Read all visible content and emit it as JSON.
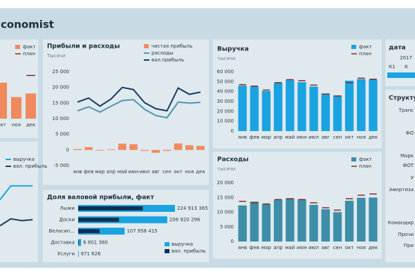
{
  "header": {
    "title": "conomist"
  },
  "chart_data": [
    {
      "type": "combo",
      "title": "Прибыли и расходы",
      "subtitle": "Тысячи",
      "categories": [
        "янв",
        "фев",
        "мар",
        "апр",
        "май",
        "июн",
        "июл",
        "авг",
        "сен",
        "окт",
        "ноя",
        "дек"
      ],
      "series": [
        {
          "name": "чистая прибыль",
          "type": "bar",
          "color": "#f08a5d",
          "values": [
            300,
            900,
            -200,
            200,
            2000,
            1800,
            -300,
            -900,
            -300,
            2100,
            1500,
            1300
          ]
        },
        {
          "name": "расходы",
          "type": "line",
          "color": "#4a97b0",
          "values": [
            12500,
            13800,
            12100,
            14000,
            15800,
            16100,
            13000,
            11000,
            10300,
            15300,
            15000,
            15200
          ]
        },
        {
          "name": "вал.прибыль",
          "type": "line",
          "color": "#173a5e",
          "values": [
            15300,
            16600,
            14000,
            16300,
            20000,
            19300,
            15100,
            13200,
            12500,
            19800,
            17800,
            18500
          ]
        }
      ],
      "ylim": [
        -5000,
        25000
      ],
      "yticks": [
        {
          "value": 25000,
          "label": "25 000"
        },
        {
          "value": 20000,
          "label": "20 000"
        },
        {
          "value": 15000,
          "label": "15 000"
        },
        {
          "value": 10000,
          "label": "10 000"
        },
        {
          "value": 5000,
          "label": "5 000"
        },
        0,
        {
          "value": -5000,
          "label": "-5 000"
        }
      ],
      "grid": false
    },
    {
      "type": "bar",
      "title": "Выручка",
      "subtitle": "тысячи",
      "categories": [
        "янв",
        "фев",
        "мар",
        "апр",
        "май",
        "июн",
        "июл",
        "авг",
        "сен",
        "окт",
        "ноя",
        "дек"
      ],
      "series": [
        {
          "name": "факт",
          "type": "bar",
          "color": "#1aa3e0",
          "values": [
            46000,
            45000,
            40500,
            48500,
            51500,
            49500,
            45000,
            38000,
            36000,
            51000,
            52500,
            52000
          ]
        },
        {
          "name": "план",
          "type": "marker",
          "color": "#8a2a1e",
          "values": [
            47000,
            45500,
            41500,
            49000,
            52000,
            51000,
            46500,
            37500,
            35500,
            49000,
            53500,
            52500
          ]
        }
      ],
      "ylim": [
        0,
        60000
      ],
      "yticks": [
        0,
        {
          "value": 10000,
          "label": "10 000"
        },
        {
          "value": 20000,
          "label": "20 000"
        },
        {
          "value": 30000,
          "label": "30 000"
        },
        {
          "value": 40000,
          "label": "40 000"
        },
        {
          "value": 50000,
          "label": "50 000"
        },
        {
          "value": 60000,
          "label": "60 000"
        }
      ],
      "grid": false
    },
    {
      "type": "bar",
      "title": "Расходы",
      "subtitle": "тысячи",
      "categories": [
        "янв",
        "фев",
        "мар",
        "апр",
        "май",
        "июн",
        "июл",
        "авг",
        "сен",
        "окт",
        "ноя",
        "дек"
      ],
      "series": [
        {
          "name": "факт",
          "type": "bar",
          "color": "#3d8ea8",
          "values": [
            12300,
            13600,
            12700,
            14200,
            14700,
            14300,
            12500,
            11000,
            10000,
            13900,
            14900,
            15000
          ]
        },
        {
          "name": "план",
          "type": "marker",
          "color": "#8a2a1e",
          "values": [
            13700,
            13200,
            12800,
            14300,
            14600,
            14300,
            13200,
            11500,
            10700,
            14600,
            15800,
            16200
          ]
        }
      ],
      "ylim": [
        0,
        20000
      ],
      "yticks": [
        0,
        {
          "value": 5000,
          "label": "5 000"
        },
        {
          "value": 10000,
          "label": "10 000"
        },
        {
          "value": 15000,
          "label": "15 000"
        },
        {
          "value": 20000,
          "label": "20 000"
        }
      ],
      "grid": false
    },
    {
      "type": "hbar",
      "title": "Доля валовой прибыли, факт",
      "categories": [
        "Лыжи",
        "Доски",
        "Велосип...",
        "Доставка",
        "Услуги"
      ],
      "series": [
        {
          "name": "выручка",
          "color": "#1aa3e0",
          "values": [
            224913365,
            206920296,
            107958415,
            6801380,
            971626
          ],
          "value_labels": [
            "224 913 365",
            "206 920 296",
            "107 958 415",
            "6 801 380",
            "971 626"
          ]
        },
        {
          "name": "вал. прибыль",
          "color": "#10304f",
          "values": [
            150000000,
            95000000,
            50000000,
            1500000,
            500000
          ]
        }
      ]
    },
    {
      "type": "bar",
      "categories": [
        "окт",
        "ноя",
        "дек"
      ],
      "series": [
        {
          "name": "факт",
          "type": "bar",
          "color": "#f08a5d",
          "values": [
            20,
            12,
            14
          ]
        },
        {
          "name": "план",
          "type": "marker",
          "color": "#8a2a1e",
          "values": [
            null,
            null,
            24
          ]
        }
      ]
    },
    {
      "type": "line",
      "categories": [
        null,
        null,
        null,
        null
      ],
      "series": [
        {
          "name": "выручка",
          "type": "line",
          "color": "#1aa3e0",
          "values": [
            30,
            38,
            38,
            38
          ]
        },
        {
          "name": "вал. прибыль",
          "type": "line",
          "color": "#173a5e",
          "values": [
            15,
            19,
            18,
            18.5
          ]
        }
      ]
    }
  ],
  "date_panel": {
    "title": "дата",
    "year": "2017",
    "quarters": [
      "К1",
      "К"
    ]
  },
  "structure_panel": {
    "title": "Структур",
    "labels": [
      "Транс",
      "ФО",
      "Марк",
      "ФОТ",
      "У",
      "Амортиза",
      "Командир",
      "Прочи",
      "При"
    ]
  }
}
